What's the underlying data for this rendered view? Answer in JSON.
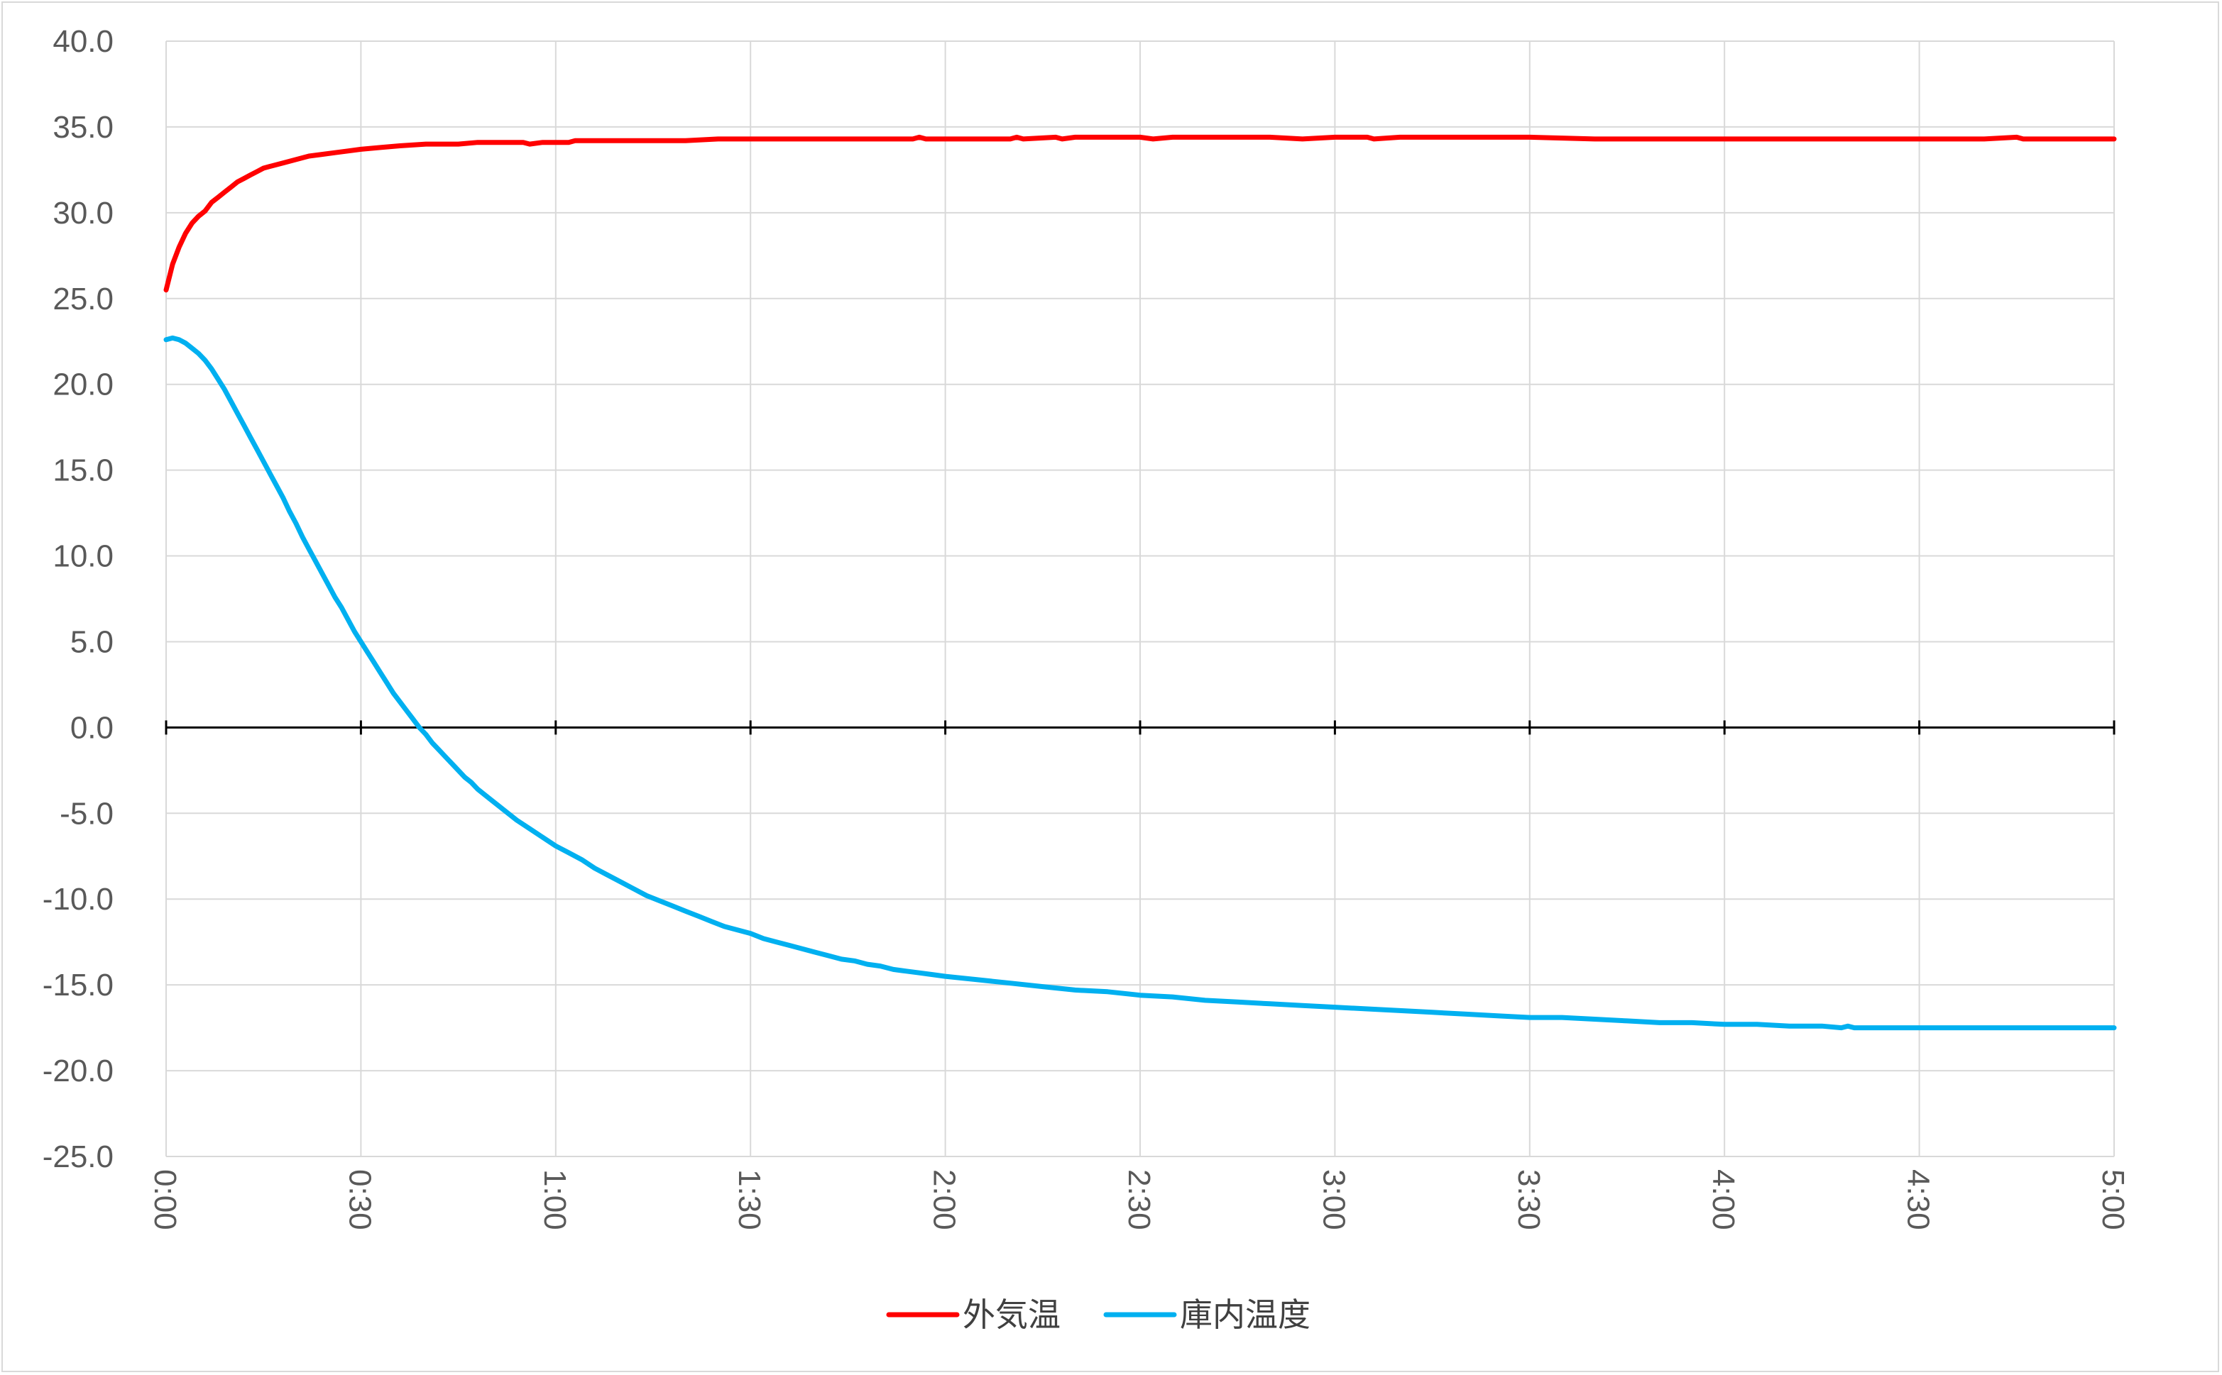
{
  "chart_data": {
    "type": "line",
    "title": "",
    "xlabel": "",
    "ylabel": "",
    "ylim": [
      -25,
      40
    ],
    "y_ticks": [
      "40.0",
      "35.0",
      "30.0",
      "25.0",
      "20.0",
      "15.0",
      "10.0",
      "5.0",
      "0.0",
      "-5.0",
      "-10.0",
      "-15.0",
      "-20.0",
      "-25.0"
    ],
    "x_ticks": [
      "0:00",
      "0:30",
      "1:00",
      "1:30",
      "2:00",
      "2:30",
      "3:00",
      "3:30",
      "4:00",
      "4:30",
      "5:00"
    ],
    "x_unit": "minutes",
    "xlim": [
      0,
      300
    ],
    "grid": true,
    "legend": "bottom-center",
    "series": [
      {
        "name": "外気温",
        "color": "#ff0000",
        "points": [
          [
            0,
            25.5
          ],
          [
            1,
            27
          ],
          [
            2,
            28
          ],
          [
            3,
            28.8
          ],
          [
            4,
            29.4
          ],
          [
            5,
            29.8
          ],
          [
            6,
            30.1
          ],
          [
            7,
            30.6
          ],
          [
            8,
            30.9
          ],
          [
            9,
            31.2
          ],
          [
            10,
            31.5
          ],
          [
            11,
            31.8
          ],
          [
            12,
            32.0
          ],
          [
            13,
            32.2
          ],
          [
            14,
            32.4
          ],
          [
            15,
            32.6
          ],
          [
            16,
            32.7
          ],
          [
            17,
            32.8
          ],
          [
            18,
            32.9
          ],
          [
            20,
            33.1
          ],
          [
            22,
            33.3
          ],
          [
            24,
            33.4
          ],
          [
            26,
            33.5
          ],
          [
            28,
            33.6
          ],
          [
            30,
            33.7
          ],
          [
            33,
            33.8
          ],
          [
            36,
            33.9
          ],
          [
            40,
            34.0
          ],
          [
            45,
            34.0
          ],
          [
            48,
            34.1
          ],
          [
            52,
            34.1
          ],
          [
            55,
            34.1
          ],
          [
            56,
            34.0
          ],
          [
            58,
            34.1
          ],
          [
            62,
            34.1
          ],
          [
            63,
            34.2
          ],
          [
            66,
            34.2
          ],
          [
            70,
            34.2
          ],
          [
            75,
            34.2
          ],
          [
            80,
            34.2
          ],
          [
            85,
            34.3
          ],
          [
            90,
            34.3
          ],
          [
            95,
            34.3
          ],
          [
            100,
            34.3
          ],
          [
            110,
            34.3
          ],
          [
            115,
            34.3
          ],
          [
            116,
            34.4
          ],
          [
            117,
            34.3
          ],
          [
            120,
            34.3
          ],
          [
            130,
            34.3
          ],
          [
            131,
            34.4
          ],
          [
            132,
            34.3
          ],
          [
            137,
            34.4
          ],
          [
            138,
            34.3
          ],
          [
            140,
            34.4
          ],
          [
            150,
            34.4
          ],
          [
            152,
            34.3
          ],
          [
            155,
            34.4
          ],
          [
            160,
            34.4
          ],
          [
            165,
            34.4
          ],
          [
            170,
            34.4
          ],
          [
            175,
            34.3
          ],
          [
            180,
            34.4
          ],
          [
            185,
            34.4
          ],
          [
            186,
            34.3
          ],
          [
            190,
            34.4
          ],
          [
            200,
            34.4
          ],
          [
            205,
            34.4
          ],
          [
            210,
            34.4
          ],
          [
            220,
            34.3
          ],
          [
            225,
            34.3
          ],
          [
            230,
            34.3
          ],
          [
            235,
            34.3
          ],
          [
            240,
            34.3
          ],
          [
            250,
            34.3
          ],
          [
            260,
            34.3
          ],
          [
            270,
            34.3
          ],
          [
            280,
            34.3
          ],
          [
            285,
            34.4
          ],
          [
            286,
            34.3
          ],
          [
            290,
            34.3
          ],
          [
            300,
            34.3
          ]
        ]
      },
      {
        "name": "庫内温度",
        "color": "#00b0f0",
        "points": [
          [
            0,
            22.6
          ],
          [
            1,
            22.7
          ],
          [
            2,
            22.6
          ],
          [
            3,
            22.4
          ],
          [
            4,
            22.1
          ],
          [
            5,
            21.8
          ],
          [
            6,
            21.4
          ],
          [
            7,
            20.9
          ],
          [
            8,
            20.3
          ],
          [
            9,
            19.7
          ],
          [
            10,
            19.0
          ],
          [
            11,
            18.3
          ],
          [
            12,
            17.6
          ],
          [
            13,
            16.9
          ],
          [
            14,
            16.2
          ],
          [
            15,
            15.5
          ],
          [
            16,
            14.8
          ],
          [
            17,
            14.1
          ],
          [
            18,
            13.4
          ],
          [
            19,
            12.6
          ],
          [
            20,
            11.9
          ],
          [
            21,
            11.1
          ],
          [
            22,
            10.4
          ],
          [
            23,
            9.7
          ],
          [
            24,
            9.0
          ],
          [
            25,
            8.3
          ],
          [
            26,
            7.6
          ],
          [
            27,
            7.0
          ],
          [
            28,
            6.3
          ],
          [
            29,
            5.6
          ],
          [
            30,
            5.0
          ],
          [
            31,
            4.4
          ],
          [
            32,
            3.8
          ],
          [
            33,
            3.2
          ],
          [
            34,
            2.6
          ],
          [
            35,
            2.0
          ],
          [
            36,
            1.5
          ],
          [
            37,
            1.0
          ],
          [
            38,
            0.5
          ],
          [
            39,
            0.0
          ],
          [
            40,
            -0.4
          ],
          [
            41,
            -0.9
          ],
          [
            42,
            -1.3
          ],
          [
            43,
            -1.7
          ],
          [
            44,
            -2.1
          ],
          [
            45,
            -2.5
          ],
          [
            46,
            -2.9
          ],
          [
            47,
            -3.2
          ],
          [
            48,
            -3.6
          ],
          [
            49,
            -3.9
          ],
          [
            50,
            -4.2
          ],
          [
            52,
            -4.8
          ],
          [
            54,
            -5.4
          ],
          [
            56,
            -5.9
          ],
          [
            58,
            -6.4
          ],
          [
            60,
            -6.9
          ],
          [
            62,
            -7.3
          ],
          [
            64,
            -7.7
          ],
          [
            66,
            -8.2
          ],
          [
            68,
            -8.6
          ],
          [
            70,
            -9.0
          ],
          [
            72,
            -9.4
          ],
          [
            74,
            -9.8
          ],
          [
            76,
            -10.1
          ],
          [
            78,
            -10.4
          ],
          [
            80,
            -10.7
          ],
          [
            82,
            -11.0
          ],
          [
            84,
            -11.3
          ],
          [
            86,
            -11.6
          ],
          [
            88,
            -11.8
          ],
          [
            90,
            -12.0
          ],
          [
            92,
            -12.3
          ],
          [
            94,
            -12.5
          ],
          [
            96,
            -12.7
          ],
          [
            98,
            -12.9
          ],
          [
            100,
            -13.1
          ],
          [
            102,
            -13.3
          ],
          [
            104,
            -13.5
          ],
          [
            106,
            -13.6
          ],
          [
            108,
            -13.8
          ],
          [
            110,
            -13.9
          ],
          [
            112,
            -14.1
          ],
          [
            114,
            -14.2
          ],
          [
            116,
            -14.3
          ],
          [
            118,
            -14.4
          ],
          [
            120,
            -14.5
          ],
          [
            125,
            -14.7
          ],
          [
            130,
            -14.9
          ],
          [
            135,
            -15.1
          ],
          [
            140,
            -15.3
          ],
          [
            145,
            -15.4
          ],
          [
            150,
            -15.6
          ],
          [
            155,
            -15.7
          ],
          [
            160,
            -15.9
          ],
          [
            165,
            -16.0
          ],
          [
            170,
            -16.1
          ],
          [
            175,
            -16.2
          ],
          [
            180,
            -16.3
          ],
          [
            185,
            -16.4
          ],
          [
            190,
            -16.5
          ],
          [
            195,
            -16.6
          ],
          [
            200,
            -16.7
          ],
          [
            205,
            -16.8
          ],
          [
            210,
            -16.9
          ],
          [
            215,
            -16.9
          ],
          [
            220,
            -17.0
          ],
          [
            225,
            -17.1
          ],
          [
            230,
            -17.2
          ],
          [
            235,
            -17.2
          ],
          [
            240,
            -17.3
          ],
          [
            245,
            -17.3
          ],
          [
            250,
            -17.4
          ],
          [
            255,
            -17.4
          ],
          [
            258,
            -17.5
          ],
          [
            259,
            -17.4
          ],
          [
            260,
            -17.5
          ],
          [
            265,
            -17.5
          ],
          [
            270,
            -17.5
          ],
          [
            275,
            -17.5
          ],
          [
            280,
            -17.5
          ],
          [
            285,
            -17.5
          ],
          [
            290,
            -17.5
          ],
          [
            300,
            -17.5
          ]
        ]
      }
    ]
  }
}
